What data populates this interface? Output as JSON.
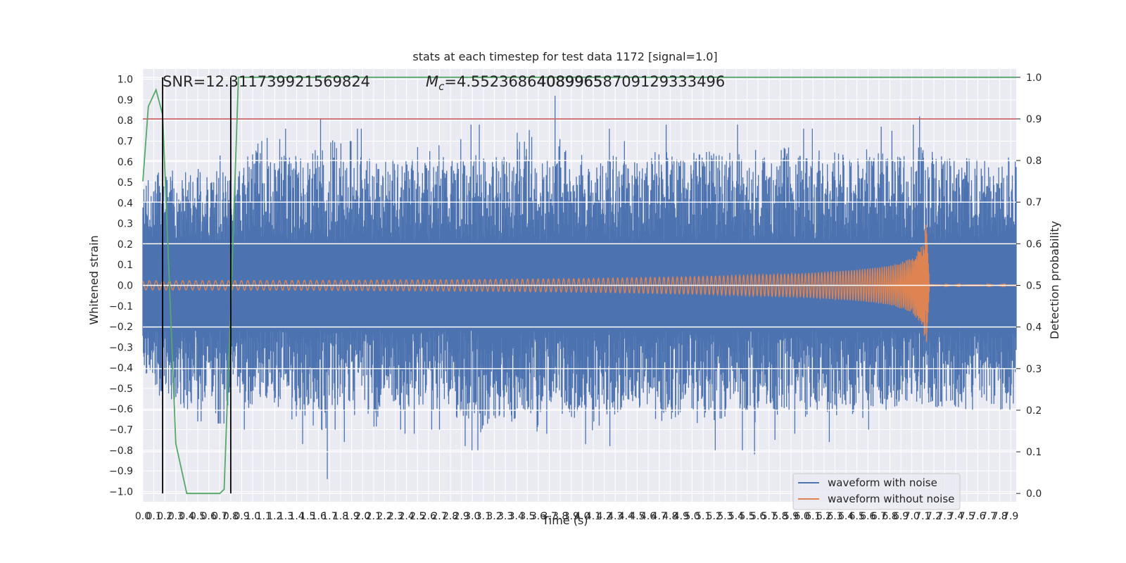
{
  "chart_data": {
    "type": "line",
    "title": "stats at each timestep for test data 1172 [signal=1.0]",
    "xlabel": "Time (s)",
    "ylabel": "Whitened strain",
    "ylabel_right": "Detection probability",
    "xlim": [
      0.0,
      7.95
    ],
    "ylim": [
      -1.05,
      1.05
    ],
    "ylim_right": [
      -0.02,
      1.02
    ],
    "x_ticks": [
      "0.0",
      "0.1",
      "0.2",
      "0.3",
      "0.4",
      "0.5",
      "0.6",
      "0.7",
      "0.8",
      "0.9",
      "1.0",
      "1.1",
      "1.2",
      "1.3",
      "1.4",
      "1.5",
      "1.6",
      "1.7",
      "1.8",
      "1.9",
      "2.0",
      "2.1",
      "2.2",
      "2.3",
      "2.4",
      "2.5",
      "2.6",
      "2.7",
      "2.8",
      "2.9",
      "3.0",
      "3.1",
      "3.2",
      "3.3",
      "3.4",
      "3.5",
      "3.6",
      "3.7",
      "3.8",
      "3.9",
      "4.0",
      "4.1",
      "4.2",
      "4.3",
      "4.4",
      "4.5",
      "4.6",
      "4.7",
      "4.8",
      "4.9",
      "5.0",
      "5.1",
      "5.2",
      "5.3",
      "5.4",
      "5.5",
      "5.6",
      "5.7",
      "5.8",
      "5.9",
      "6.0",
      "6.1",
      "6.2",
      "6.3",
      "6.4",
      "6.5",
      "6.6",
      "6.7",
      "6.8",
      "6.9",
      "7.0",
      "7.1",
      "7.2",
      "7.3",
      "7.4",
      "7.5",
      "7.6",
      "7.7",
      "7.8",
      "7.9"
    ],
    "y_ticks": [
      "1.0",
      "0.9",
      "0.8",
      "0.7",
      "0.6",
      "0.5",
      "0.4",
      "0.3",
      "0.2",
      "0.1",
      "0.0",
      "−0.1",
      "−0.2",
      "−0.3",
      "−0.4",
      "−0.5",
      "−0.6",
      "−0.7",
      "−0.8",
      "−0.9",
      "−1.0"
    ],
    "y_ticks_right": [
      "1.0",
      "0.9",
      "0.8",
      "0.7",
      "0.6",
      "0.5",
      "0.4",
      "0.3",
      "0.2",
      "0.1",
      "0.0"
    ],
    "grid": true,
    "legend_position": "bottom-right",
    "annotations": {
      "snr": "SNR=12.311739921569824",
      "mc": "=4.55236864089965",
      "mc_symbol": "M",
      "mc_sub": "c",
      "overlap": "40899658709129333496"
    },
    "series": [
      {
        "name": "waveform with noise",
        "color": "#4c72b0",
        "description_of_values": "whitened noisy strain, dense band roughly within ±0.35 with spikes to ±1.0",
        "envelope_upper": [
          0.51,
          0.6,
          0.63,
          0.62,
          0.63,
          0.64,
          0.63,
          0.62,
          0.78,
          0.92,
          0.71,
          0.76,
          0.77,
          0.82,
          0.81,
          0.89,
          0.7,
          0.76,
          0.72,
          0.73,
          0.71,
          0.74,
          0.83,
          0.68,
          0.74,
          0.71,
          0.78,
          0.72,
          0.75,
          0.72,
          1.0,
          0.72,
          0.75,
          0.92,
          0.76,
          0.78,
          0.72,
          0.76,
          0.7,
          0.73,
          0.74,
          0.78,
          0.77,
          0.76,
          0.78,
          0.8,
          0.75,
          0.78,
          0.74,
          0.8,
          0.72,
          0.82,
          0.76,
          0.76,
          0.79,
          0.82,
          0.76,
          0.73,
          0.8,
          0.77,
          0.75,
          0.78,
          0.82,
          0.78,
          0.74,
          0.7,
          0.73,
          0.76,
          0.72,
          0.76,
          0.68
        ],
        "envelope_lower": [
          -0.39,
          -0.64,
          -0.61,
          -0.72,
          -0.66,
          -0.62,
          -0.67,
          -0.56,
          -0.7,
          -0.6,
          -0.72,
          -0.65,
          -0.77,
          -0.68,
          -0.94,
          -0.7,
          -0.76,
          -0.62,
          -0.87,
          -0.65,
          -0.7,
          -0.72,
          -0.68,
          -0.7,
          -0.66,
          -0.78,
          -0.8,
          -0.91,
          -0.8,
          -0.82,
          -0.76,
          -0.9,
          -0.72,
          -0.76,
          -0.79,
          -0.77,
          -0.9,
          -0.78,
          -0.72,
          -0.7,
          -0.66,
          -0.8,
          -0.78,
          -0.72,
          -0.82,
          -0.8,
          -0.78,
          -0.74,
          -0.8,
          -0.82,
          -0.75,
          -0.78,
          -0.72,
          -0.77,
          -0.74,
          -0.76,
          -0.82,
          -0.78,
          -0.7,
          -0.77,
          -0.76,
          -0.7,
          -0.66,
          -0.72,
          -0.75,
          -0.74,
          -0.7,
          -0.62,
          -0.7,
          -0.76,
          -0.6
        ]
      },
      {
        "name": "waveform without noise",
        "color": "#dd8452",
        "description_of_values": "chirp signal, amplitude grows until merger at ~7.13 s then ringdown",
        "x": [
          0.0,
          1.0,
          2.0,
          3.0,
          4.0,
          5.0,
          6.0,
          6.5,
          6.8,
          7.0,
          7.1,
          7.13,
          7.16,
          7.95
        ],
        "amplitude": [
          0.022,
          0.023,
          0.025,
          0.028,
          0.033,
          0.042,
          0.058,
          0.075,
          0.095,
          0.13,
          0.2,
          0.31,
          0.005,
          0.004
        ]
      },
      {
        "name": "",
        "axis": "right",
        "color": "#55a868",
        "description_of_values": "detection probability",
        "x": [
          0.0,
          0.05,
          0.12,
          0.18,
          0.25,
          0.3,
          0.4,
          0.5,
          0.6,
          0.7,
          0.74,
          0.8,
          0.87,
          1.0,
          2.0,
          4.0,
          6.0,
          7.95
        ],
        "y": [
          0.75,
          0.93,
          0.97,
          0.91,
          0.45,
          0.12,
          0.0,
          0.0,
          0.0,
          0.0,
          0.01,
          0.45,
          1.0,
          1.0,
          1.0,
          1.0,
          1.0,
          1.0
        ]
      }
    ],
    "threshold_line": {
      "axis": "right",
      "y": 0.9,
      "color": "#c44e52"
    },
    "vertical_lines": [
      {
        "x": 0.18,
        "color": "#000000",
        "from_right": 0.0,
        "to_right": 1.0
      },
      {
        "x": 0.8,
        "color": "#000000",
        "from_right": 0.0,
        "to_right": 1.0
      }
    ]
  }
}
